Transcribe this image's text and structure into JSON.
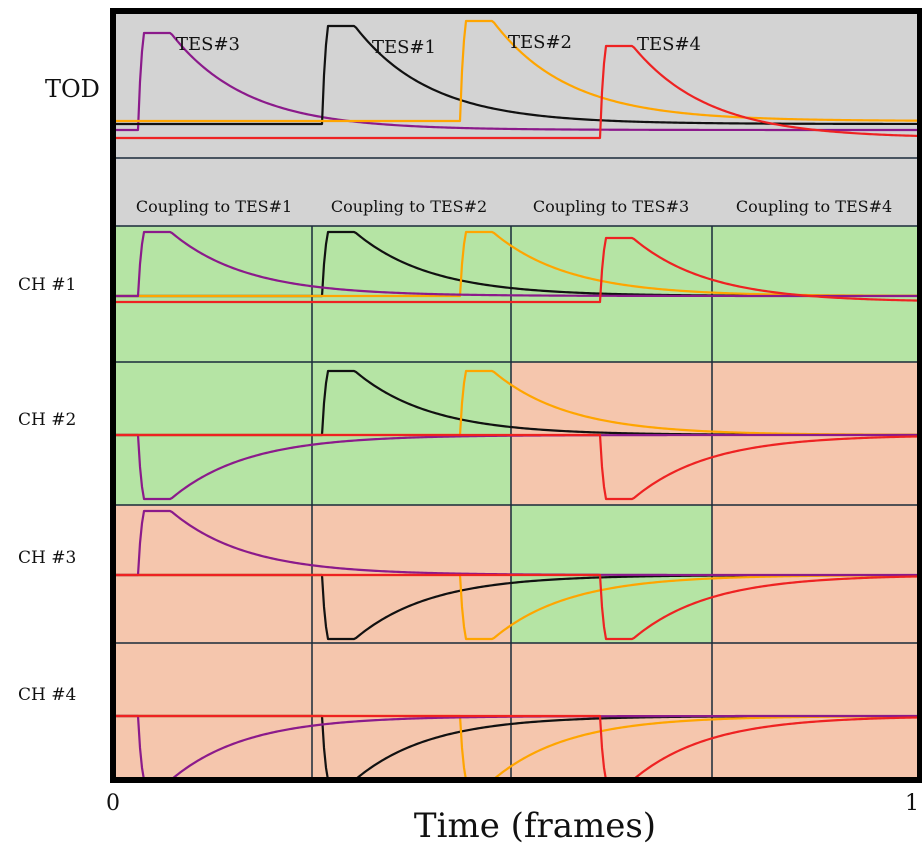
{
  "tod_label": "TOD",
  "pulse_labels": [
    {
      "text": "TES#3",
      "color": "#8b1a8b"
    },
    {
      "text": "TES#1",
      "color": "#111111"
    },
    {
      "text": "TES#2",
      "color": "#ffa500"
    },
    {
      "text": "TES#4",
      "color": "#ee2222"
    }
  ],
  "coupling_headers": [
    "Coupling to TES#1",
    "Coupling to TES#2",
    "Coupling to TES#3",
    "Coupling to TES#4"
  ],
  "channels": [
    {
      "label": "CH #1",
      "coupling": [
        "positive",
        "positive",
        "positive",
        "positive"
      ]
    },
    {
      "label": "CH #2",
      "coupling": [
        "positive",
        "positive",
        "negative",
        "negative"
      ]
    },
    {
      "label": "CH #3",
      "coupling": [
        "negative",
        "negative",
        "positive",
        "negative"
      ]
    },
    {
      "label": "CH #4",
      "coupling": [
        "negative",
        "negative",
        "negative",
        "negative"
      ]
    }
  ],
  "x_axis": {
    "label": "Time (frames)",
    "min_tick": "0",
    "max_tick": "1"
  },
  "colors": {
    "tod_background": "#d3d3d3",
    "positive_background": "#b5e4a4",
    "negative_background": "#f5c6ad",
    "tes1": "#111111",
    "tes2": "#ffa500",
    "tes3": "#8b1a8b",
    "tes4": "#ee2222",
    "tes4_baseline": "#e06060",
    "frame": "#000000",
    "divider": "#1a2a3a"
  }
}
